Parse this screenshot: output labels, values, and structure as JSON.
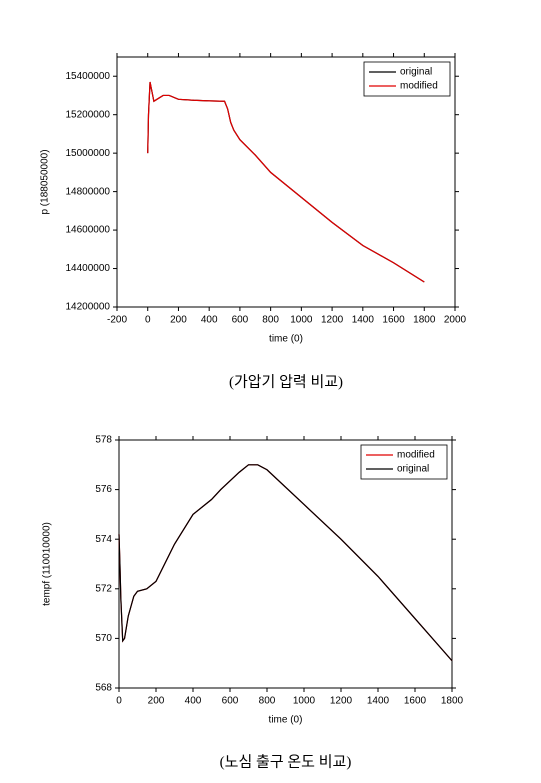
{
  "chart_data": [
    {
      "type": "line",
      "xlabel": "time (0)",
      "ylabel": "p (188050000)",
      "caption": "(가압기 압력 비교)",
      "xlim": [
        -200,
        2000
      ],
      "xticks": [
        -200,
        0,
        200,
        400,
        600,
        800,
        1000,
        1200,
        1400,
        1600,
        1800,
        2000
      ],
      "ylim": [
        14200000,
        15500000
      ],
      "yticks": [
        14200000,
        14400000,
        14600000,
        14800000,
        15000000,
        15200000,
        15400000
      ],
      "legend": "top-right",
      "x": [
        0,
        5,
        15,
        25,
        40,
        60,
        100,
        140,
        200,
        300,
        400,
        500,
        520,
        540,
        560,
        600,
        700,
        800,
        1000,
        1200,
        1400,
        1600,
        1800
      ],
      "series": [
        {
          "name": "original",
          "color": "#000000",
          "values": [
            15000000,
            15200000,
            15370000,
            15330000,
            15270000,
            15280000,
            15300000,
            15300000,
            15280000,
            15275000,
            15272000,
            15270000,
            15230000,
            15160000,
            15120000,
            15070000,
            14990000,
            14900000,
            14770000,
            14640000,
            14520000,
            14430000,
            14330000
          ]
        },
        {
          "name": "modified",
          "color": "#e00000",
          "values": [
            15000000,
            15200000,
            15370000,
            15330000,
            15270000,
            15280000,
            15300000,
            15300000,
            15280000,
            15275000,
            15272000,
            15270000,
            15230000,
            15160000,
            15120000,
            15070000,
            14990000,
            14900000,
            14770000,
            14640000,
            14520000,
            14430000,
            14330000
          ]
        }
      ]
    },
    {
      "type": "line",
      "xlabel": "time (0)",
      "ylabel": "tempf (110010000)",
      "caption": "(노심 출구 온도 비교)",
      "xlim": [
        0,
        1800
      ],
      "xticks": [
        0,
        200,
        400,
        600,
        800,
        1000,
        1200,
        1400,
        1600,
        1800
      ],
      "ylim": [
        568,
        578
      ],
      "yticks": [
        568,
        570,
        572,
        574,
        576,
        578
      ],
      "legend": "top-right",
      "x": [
        0,
        5,
        10,
        20,
        30,
        50,
        80,
        100,
        150,
        200,
        300,
        400,
        500,
        550,
        650,
        700,
        750,
        800,
        1000,
        1200,
        1400,
        1600,
        1800
      ],
      "series": [
        {
          "name": "modified",
          "color": "#e00000",
          "values": [
            574.2,
            573,
            571.6,
            569.9,
            570,
            570.9,
            571.7,
            571.9,
            572,
            572.3,
            573.8,
            575,
            575.6,
            576,
            576.7,
            577,
            577,
            576.8,
            575.4,
            574,
            572.5,
            570.8,
            569.1
          ]
        },
        {
          "name": "original",
          "color": "#000000",
          "values": [
            574.2,
            573,
            571.6,
            569.9,
            570,
            570.9,
            571.7,
            571.9,
            572,
            572.3,
            573.8,
            575,
            575.6,
            576,
            576.7,
            577,
            577,
            576.8,
            575.4,
            574,
            572.5,
            570.8,
            569.1
          ]
        }
      ]
    }
  ]
}
